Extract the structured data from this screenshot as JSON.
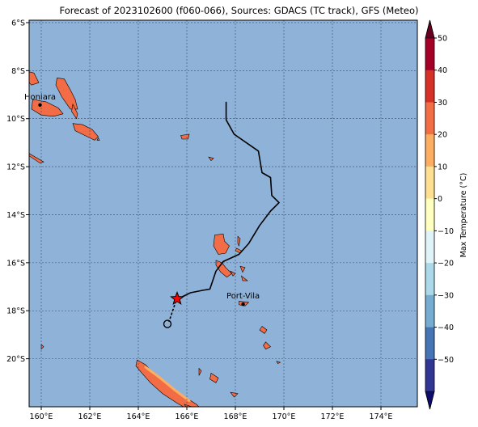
{
  "title": "Forecast of 2023102600 (f060-066), Sources: GDACS (TC track), GFS (Meteo)",
  "map": {
    "lon_ticks": [
      "160°E",
      "162°E",
      "164°E",
      "166°E",
      "168°E",
      "170°E",
      "172°E",
      "174°E"
    ],
    "lat_ticks": [
      "6°S",
      "8°S",
      "10°S",
      "12°S",
      "14°S",
      "16°S",
      "18°S",
      "20°S"
    ],
    "lon_range": [
      159.5,
      175.5
    ],
    "lat_range": [
      -22.0,
      -5.9
    ],
    "ocean_color": "#8fb3d8",
    "land_color": "#f26c46",
    "places": [
      {
        "name": "Honiara",
        "lon": 159.95,
        "lat": -9.43
      },
      {
        "name": "Port-Vila",
        "lon": 168.32,
        "lat": -17.73
      }
    ],
    "track": [
      [
        167.62,
        -9.3
      ],
      [
        167.62,
        -10.05
      ],
      [
        167.95,
        -10.65
      ],
      [
        168.95,
        -11.35
      ],
      [
        169.1,
        -12.25
      ],
      [
        169.45,
        -12.45
      ],
      [
        169.5,
        -13.2
      ],
      [
        169.8,
        -13.5
      ],
      [
        169.45,
        -13.85
      ],
      [
        169.0,
        -14.45
      ],
      [
        168.55,
        -15.2
      ],
      [
        168.15,
        -15.65
      ],
      [
        167.5,
        -15.95
      ],
      [
        167.2,
        -16.35
      ],
      [
        166.95,
        -17.1
      ],
      [
        166.65,
        -17.15
      ],
      [
        166.15,
        -17.25
      ],
      [
        165.75,
        -17.45
      ],
      [
        165.55,
        -17.6
      ],
      [
        165.3,
        -18.35
      ],
      [
        165.25,
        -18.45
      ]
    ],
    "storm_marker": {
      "lon": 165.6,
      "lat": -17.5,
      "color": "#ff0000"
    },
    "open_circle": {
      "lon": 165.2,
      "lat": -18.55
    }
  },
  "colorbar": {
    "label": "Max Temperature (°C)",
    "ticks": [
      "50",
      "40",
      "30",
      "20",
      "10",
      "0",
      "−10",
      "−20",
      "−30",
      "−40",
      "−50"
    ],
    "colors": [
      "#a50026",
      "#d73027",
      "#f46d43",
      "#fdae61",
      "#fee090",
      "#ffffbf",
      "#e0f3f8",
      "#abd9e9",
      "#74add1",
      "#4575b4",
      "#313695"
    ]
  }
}
